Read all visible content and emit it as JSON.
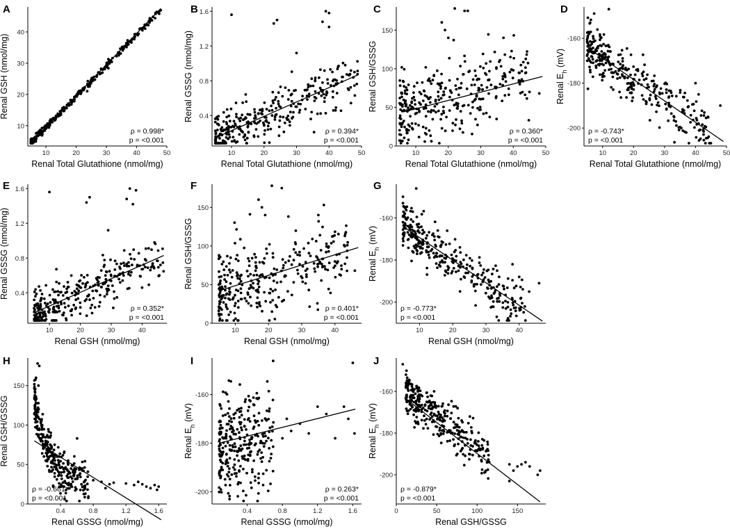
{
  "chart_data": [
    {
      "id": "A",
      "type": "scatter",
      "xlabel": "Renal Total Glutathione (nmol/mg)",
      "ylabel": "Renal GSH (nmol/mg)",
      "xlim": [
        4,
        50
      ],
      "ylim": [
        3.5,
        48
      ],
      "xticks": [
        10,
        20,
        30,
        40,
        50
      ],
      "yticks": [
        10,
        20,
        30,
        40
      ],
      "fit": [
        [
          5,
          4.5
        ],
        [
          48,
          47.5
        ]
      ],
      "stat_rho": "ρ = 0.998*",
      "stat_p": "p = <0.001",
      "pattern": {
        "a": -0.5,
        "b": 0.99,
        "noise": 0.5,
        "x0": 5,
        "x1": 48,
        "skew": 1.8,
        "n": 320,
        "seed": 11
      }
    },
    {
      "id": "B",
      "type": "scatter",
      "xlabel": "Renal Total Glutathione (nmol/mg)",
      "ylabel": "Renal GSSG (nmol/mg)",
      "xlim": [
        4,
        50
      ],
      "ylim": [
        0.05,
        1.65
      ],
      "xticks": [
        10,
        20,
        30,
        40,
        50
      ],
      "yticks": [
        0.4,
        0.8,
        1.2,
        1.6
      ],
      "fit": [
        [
          6,
          0.16
        ],
        [
          49,
          0.87
        ]
      ],
      "stat_rho": "ρ = 0.394*",
      "stat_p": "p = <0.001",
      "pattern": {
        "a": 0.06,
        "b": 0.0165,
        "noise": 0.13,
        "x0": 5,
        "x1": 49,
        "skew": 1.8,
        "n": 320,
        "seed": 22
      },
      "outliers": [
        [
          10,
          1.56
        ],
        [
          23,
          1.46
        ],
        [
          24,
          1.5
        ],
        [
          38,
          1.48
        ],
        [
          39,
          1.6
        ],
        [
          40,
          1.58
        ],
        [
          40,
          1.42
        ],
        [
          30,
          1.12
        ],
        [
          45,
          0.98
        ],
        [
          36,
          0.6
        ],
        [
          42,
          0.46
        ]
      ]
    },
    {
      "id": "C",
      "type": "scatter",
      "xlabel": "Renal Total Glutathione (nmol/mg)",
      "ylabel": "Renal GSH/GSSG",
      "xlim": [
        4,
        50
      ],
      "ylim": [
        0,
        180
      ],
      "xticks": [
        10,
        20,
        30,
        40,
        50
      ],
      "yticks": [
        0,
        50,
        100,
        150
      ],
      "fit": [
        [
          6,
          44
        ],
        [
          49,
          90
        ]
      ],
      "stat_rho": "ρ = 0.360*",
      "stat_p": "p = <0.001",
      "pattern": {
        "a": 37,
        "b": 1.1,
        "noise": 24,
        "x0": 5,
        "x1": 45,
        "skew": 1.6,
        "n": 320,
        "seed": 33
      },
      "outliers": [
        [
          18,
          160
        ],
        [
          19,
          150
        ],
        [
          20,
          140
        ],
        [
          22,
          178
        ],
        [
          25,
          175
        ],
        [
          26,
          175
        ],
        [
          37,
          140
        ],
        [
          42,
          80
        ],
        [
          45,
          70
        ],
        [
          48,
          68
        ],
        [
          40,
          98
        ]
      ]
    },
    {
      "id": "D",
      "type": "scatter",
      "xlabel": "Renal Total Glutathione (nmol/mg)",
      "ylabel": "Renal Eh (mV)",
      "xlim": [
        4,
        50
      ],
      "ylim": [
        -208,
        -146
      ],
      "xticks": [
        10,
        20,
        30,
        40,
        50
      ],
      "yticks": [
        -160,
        -180,
        -200
      ],
      "fit": [
        [
          6,
          -165
        ],
        [
          49,
          -206
        ]
      ],
      "stat_rho": "ρ = -0.743*",
      "stat_p": "p = <0.001",
      "pattern": {
        "a": -160,
        "b": -0.95,
        "noise": 5.5,
        "x0": 5,
        "x1": 45,
        "skew": 1.6,
        "n": 320,
        "seed": 44
      },
      "outliers": [
        [
          12,
          -147
        ],
        [
          6,
          -153
        ],
        [
          40,
          -180
        ],
        [
          41,
          -185
        ],
        [
          44,
          -195
        ],
        [
          48,
          -190
        ],
        [
          37,
          -202
        ]
      ]
    },
    {
      "id": "E",
      "type": "scatter",
      "xlabel": "Renal GSH (nmol/mg)",
      "ylabel": "Renal GSSG (nmol/mg)",
      "xlim": [
        3,
        48
      ],
      "ylim": [
        0.05,
        1.65
      ],
      "xticks": [
        10,
        20,
        30,
        40
      ],
      "yticks": [
        0.4,
        0.8,
        1.2,
        1.6
      ],
      "fit": [
        [
          5,
          0.17
        ],
        [
          47,
          0.83
        ]
      ],
      "stat_rho": "ρ = 0.352*",
      "stat_p": "p = <0.001",
      "pattern": {
        "a": 0.06,
        "b": 0.016,
        "noise": 0.13,
        "x0": 5,
        "x1": 47,
        "skew": 1.8,
        "n": 320,
        "seed": 55
      },
      "outliers": [
        [
          10,
          1.56
        ],
        [
          22,
          1.44
        ],
        [
          23,
          1.5
        ],
        [
          35,
          1.48
        ],
        [
          36,
          1.6
        ],
        [
          38,
          1.58
        ],
        [
          37,
          1.42
        ],
        [
          29,
          1.12
        ],
        [
          44,
          0.98
        ],
        [
          34,
          0.6
        ],
        [
          40,
          0.46
        ]
      ]
    },
    {
      "id": "F",
      "type": "scatter",
      "xlabel": "Renal GSH (nmol/mg)",
      "ylabel": "Renal GSH/GSSG",
      "xlim": [
        3,
        48
      ],
      "ylim": [
        0,
        180
      ],
      "xticks": [
        10,
        20,
        30,
        40
      ],
      "yticks": [
        0,
        50,
        100,
        150
      ],
      "fit": [
        [
          5,
          42
        ],
        [
          47,
          98
        ]
      ],
      "stat_rho": "ρ = 0.401*",
      "stat_p": "p = <0.001",
      "pattern": {
        "a": 35,
        "b": 1.3,
        "noise": 24,
        "x0": 5,
        "x1": 44,
        "skew": 1.6,
        "n": 320,
        "seed": 66
      },
      "outliers": [
        [
          17,
          160
        ],
        [
          18,
          150
        ],
        [
          19,
          140
        ],
        [
          21,
          178
        ],
        [
          24,
          175
        ],
        [
          35,
          140
        ],
        [
          40,
          80
        ],
        [
          42,
          70
        ],
        [
          46,
          68
        ],
        [
          38,
          98
        ]
      ]
    },
    {
      "id": "G",
      "type": "scatter",
      "xlabel": "Renal GSH (nmol/mg)",
      "ylabel": "Renal Eh (mV)",
      "xlim": [
        3,
        48
      ],
      "ylim": [
        -210,
        -144
      ],
      "xticks": [
        10,
        20,
        30,
        40
      ],
      "yticks": [
        -160,
        -180,
        -200
      ],
      "fit": [
        [
          5,
          -164
        ],
        [
          47,
          -209
        ]
      ],
      "stat_rho": "ρ = -0.773*",
      "stat_p": "p = <0.001",
      "pattern": {
        "a": -159,
        "b": -1.05,
        "noise": 5.5,
        "x0": 5,
        "x1": 42,
        "skew": 1.6,
        "n": 320,
        "seed": 77
      },
      "outliers": [
        [
          9,
          -146
        ],
        [
          5,
          -153
        ],
        [
          38,
          -182
        ],
        [
          40,
          -188
        ],
        [
          43,
          -195
        ],
        [
          46,
          -191
        ],
        [
          36,
          -203
        ]
      ]
    },
    {
      "id": "H",
      "type": "scatter",
      "xlabel": "Renal GSSG (nmol/mg)",
      "ylabel": "Renal GSH/GSSG",
      "xlim": [
        0,
        1.7
      ],
      "ylim": [
        0,
        185
      ],
      "xticks": [
        0.4,
        0.8,
        1.2,
        1.6
      ],
      "yticks": [
        0,
        50,
        100,
        150
      ],
      "fit": [
        [
          0.08,
          80
        ],
        [
          1.63,
          -20
        ]
      ],
      "stat_rho": "ρ = -0.661*",
      "stat_p": "p = <0.001",
      "pattern": {
        "kind": "decay",
        "c": 20,
        "A": 110,
        "k": 5,
        "noise": 14,
        "x0": 0.08,
        "x1": 0.75,
        "skew": 1.5,
        "n": 300,
        "seed": 88
      },
      "outliers": [
        [
          0.12,
          178
        ],
        [
          0.14,
          175
        ],
        [
          0.1,
          160
        ],
        [
          0.13,
          150
        ],
        [
          0.8,
          30
        ],
        [
          0.9,
          28
        ],
        [
          1.0,
          25
        ],
        [
          1.05,
          27
        ],
        [
          1.2,
          26
        ],
        [
          1.3,
          24
        ],
        [
          1.35,
          28
        ],
        [
          1.4,
          25
        ],
        [
          1.45,
          22
        ],
        [
          1.5,
          20
        ],
        [
          1.55,
          24
        ],
        [
          1.6,
          22
        ],
        [
          1.58,
          18
        ],
        [
          0.95,
          20
        ]
      ]
    },
    {
      "id": "I",
      "type": "scatter",
      "xlabel": "Renal GSSG (nmol/mg)",
      "ylabel": "Renal Eh (mV)",
      "xlim": [
        0,
        1.7
      ],
      "ylim": [
        -205,
        -145
      ],
      "xticks": [
        0.4,
        0.8,
        1.2,
        1.6
      ],
      "yticks": [
        -160,
        -180,
        -200
      ],
      "fit": [
        [
          0.08,
          -180
        ],
        [
          1.63,
          -166
        ]
      ],
      "stat_rho": "ρ = 0.263*",
      "stat_p": "p = <0.001",
      "pattern": {
        "a": -182,
        "b": 6,
        "noise": 11,
        "x0": 0.08,
        "x1": 0.7,
        "skew": 1.5,
        "n": 300,
        "seed": 99
      },
      "outliers": [
        [
          1.6,
          -147
        ],
        [
          1.2,
          -165
        ],
        [
          1.3,
          -168
        ],
        [
          1.5,
          -165
        ],
        [
          1.55,
          -170
        ],
        [
          1.0,
          -172
        ],
        [
          0.9,
          -175
        ],
        [
          0.8,
          -178
        ],
        [
          1.4,
          -178
        ],
        [
          1.62,
          -176
        ],
        [
          0.85,
          -170
        ],
        [
          1.1,
          -176
        ]
      ]
    },
    {
      "id": "J",
      "type": "scatter",
      "xlabel": "Renal GSH/GSSG",
      "ylabel": "Renal Eh (mV)",
      "xlim": [
        0,
        185
      ],
      "ylim": [
        -214,
        -144
      ],
      "xticks": [
        0,
        50,
        100,
        150
      ],
      "yticks": [
        -160,
        -180,
        -200
      ],
      "fit": [
        [
          10,
          -163
        ],
        [
          178,
          -213
        ]
      ],
      "stat_rho": "ρ = -0.879*",
      "stat_p": "p = <0.001",
      "pattern": {
        "a": -157,
        "b": -0.3,
        "noise": 5,
        "x0": 12,
        "x1": 115,
        "skew": 1.4,
        "n": 320,
        "seed": 111
      },
      "outliers": [
        [
          8,
          -147
        ],
        [
          12,
          -152
        ],
        [
          140,
          -195
        ],
        [
          145,
          -198
        ],
        [
          150,
          -196
        ],
        [
          155,
          -195
        ],
        [
          160,
          -194
        ],
        [
          165,
          -196
        ],
        [
          175,
          -200
        ],
        [
          178,
          -198
        ],
        [
          140,
          -203
        ]
      ]
    }
  ]
}
